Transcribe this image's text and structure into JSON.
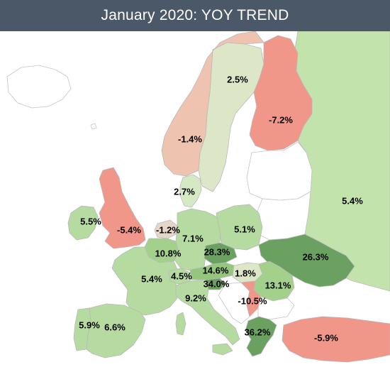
{
  "header": {
    "title": "January 2020: YOY TREND"
  },
  "colors": {
    "background": "#ffffff",
    "title_bar": "#4b5868",
    "strong_growth": "#6aa060",
    "growth": "#b5dba0",
    "mild_growth": "#d4e9c4",
    "near_flat": "#e6d6c8",
    "mild_decline": "#eec3b0",
    "decline": "#f0978a",
    "no_data": "#ffffff"
  },
  "regions": [
    {
      "id": "norway",
      "value": "-1.4%",
      "color": "#eec3b0"
    },
    {
      "id": "sweden",
      "value": "2.5%",
      "color": "#dde7c8"
    },
    {
      "id": "finland",
      "value": "-7.2%",
      "color": "#f0978a"
    },
    {
      "id": "russia",
      "value": "5.4%",
      "color": "#c3e3ad"
    },
    {
      "id": "denmark",
      "value": "2.7%",
      "color": "#d4e9c4"
    },
    {
      "id": "ireland",
      "value": "5.5%",
      "color": "#b5dba0"
    },
    {
      "id": "united-kingdom",
      "value": "-5.4%",
      "color": "#f0978a"
    },
    {
      "id": "netherlands",
      "value": "-1.2%",
      "color": "#e6d6c8"
    },
    {
      "id": "germany",
      "value": "7.1%",
      "color": "#b5dba0"
    },
    {
      "id": "poland",
      "value": "5.1%",
      "color": "#b5dba0"
    },
    {
      "id": "ukraine",
      "value": "26.3%",
      "color": "#6aa060"
    },
    {
      "id": "belgium",
      "value": "10.8%",
      "color": "#a3d18c"
    },
    {
      "id": "czechia",
      "value": "28.3%",
      "color": "#6aa060"
    },
    {
      "id": "france",
      "value": "5.4%",
      "color": "#b5dba0"
    },
    {
      "id": "switzerland",
      "value": "4.5%",
      "color": "#b5dba0"
    },
    {
      "id": "austria",
      "value": "14.6%",
      "color": "#94c67e"
    },
    {
      "id": "hungary",
      "value": "1.8%",
      "color": "#dde7c8"
    },
    {
      "id": "romania",
      "value": "13.1%",
      "color": "#a3d18c"
    },
    {
      "id": "slovenia",
      "value": "34.0%",
      "color": "#6aa060"
    },
    {
      "id": "italy",
      "value": "9.2%",
      "color": "#b5dba0"
    },
    {
      "id": "serbia",
      "value": "-10.5%",
      "color": "#f0978a"
    },
    {
      "id": "portugal",
      "value": "5.9%",
      "color": "#b5dba0"
    },
    {
      "id": "spain",
      "value": "6.6%",
      "color": "#b5dba0"
    },
    {
      "id": "greece",
      "value": "36.2%",
      "color": "#6aa060"
    },
    {
      "id": "turkey",
      "value": "-5.9%",
      "color": "#f0978a"
    }
  ]
}
